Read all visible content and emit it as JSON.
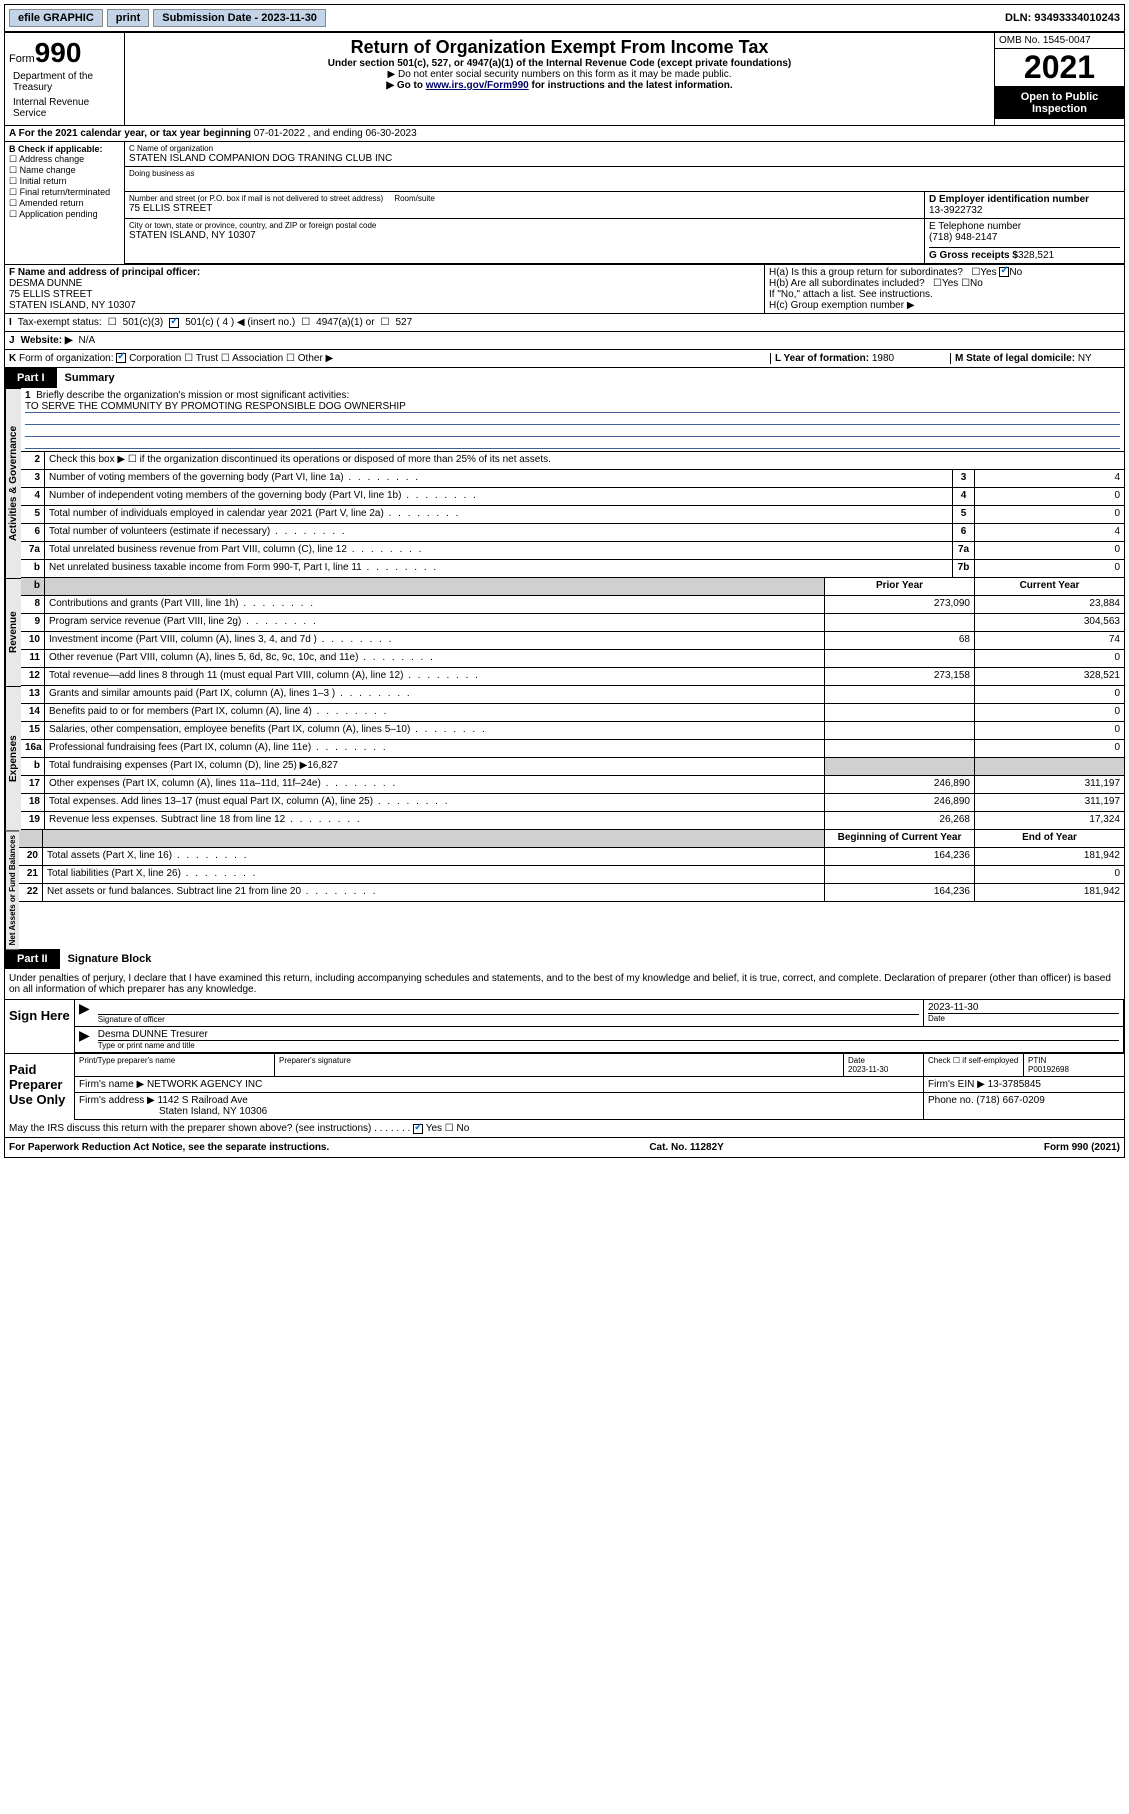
{
  "topbar": {
    "efile": "efile GRAPHIC",
    "print": "print",
    "sub_label": "Submission Date - 2023-11-30",
    "dln": "DLN: 93493334010243"
  },
  "header": {
    "form_word": "Form",
    "form_num": "990",
    "title": "Return of Organization Exempt From Income Tax",
    "subtitle": "Under section 501(c), 527, or 4947(a)(1) of the Internal Revenue Code (except private foundations)",
    "note1": "▶ Do not enter social security numbers on this form as it may be made public.",
    "note2_a": "▶ Go to ",
    "note2_link": "www.irs.gov/Form990",
    "note2_b": " for instructions and the latest information.",
    "omb": "OMB No. 1545-0047",
    "year": "2021",
    "open1": "Open to Public",
    "open2": "Inspection",
    "dept1": "Department of the Treasury",
    "dept2": "Internal Revenue Service"
  },
  "calyear": {
    "a": "A For the 2021 calendar year, or tax year beginning ",
    "begin": "07-01-2022",
    "mid": " , and ending ",
    "end": "06-30-2023"
  },
  "boxB": {
    "label": "B Check if applicable:",
    "opts": [
      "Address change",
      "Name change",
      "Initial return",
      "Final return/terminated",
      "Amended return",
      "Application pending"
    ]
  },
  "boxC": {
    "name_label": "C Name of organization",
    "name": "STATEN ISLAND COMPANION DOG TRANING CLUB INC",
    "dba_label": "Doing business as",
    "addr_label": "Number and street (or P.O. box if mail is not delivered to street address)",
    "room_label": "Room/suite",
    "addr": "75 ELLIS STREET",
    "city_label": "City or town, state or province, country, and ZIP or foreign postal code",
    "city": "STATEN ISLAND, NY  10307"
  },
  "boxD": {
    "label": "D Employer identification number",
    "val": "13-3922732"
  },
  "boxE": {
    "label": "E Telephone number",
    "val": "(718) 948-2147"
  },
  "boxG": {
    "label": "G Gross receipts $",
    "val": "328,521"
  },
  "boxF": {
    "label": "F Name and address of principal officer:",
    "name": "DESMA DUNNE",
    "addr1": "75 ELLIS STREET",
    "addr2": "STATEN ISLAND, NY  10307"
  },
  "boxH": {
    "ha": "H(a)  Is this a group return for subordinates?",
    "hb": "H(b)  Are all subordinates included?",
    "hb_note": "If \"No,\" attach a list. See instructions.",
    "hc": "H(c)  Group exemption number ▶",
    "yes": "Yes",
    "no": "No"
  },
  "lineI": {
    "label": "I",
    "text": "Tax-exempt status:",
    "opts": [
      "501(c)(3)",
      "501(c) ( 4 ) ◀ (insert no.)",
      "4947(a)(1) or",
      "527"
    ]
  },
  "lineJ": {
    "label": "J",
    "text": "Website: ▶",
    "val": "N/A"
  },
  "lineK": {
    "label": "K",
    "text": "Form of organization:",
    "opts": [
      "Corporation",
      "Trust",
      "Association",
      "Other ▶"
    ]
  },
  "lineL": {
    "label": "L Year of formation:",
    "val": "1980"
  },
  "lineM": {
    "label": "M State of legal domicile:",
    "val": "NY"
  },
  "part1": {
    "num": "Part I",
    "title": "Summary"
  },
  "summary": {
    "gov_label": "Activities & Governance",
    "rev_label": "Revenue",
    "exp_label": "Expenses",
    "net_label": "Net Assets or Fund Balances",
    "line1": "Briefly describe the organization's mission or most significant activities:",
    "mission": "TO SERVE THE COMMUNITY BY PROMOTING RESPONSIBLE DOG OWNERSHIP",
    "line2": "Check this box ▶ ☐  if the organization discontinued its operations or disposed of more than 25% of its net assets.",
    "rows_gov": [
      {
        "n": "3",
        "t": "Number of voting members of the governing body (Part VI, line 1a)",
        "b": "3",
        "v": "4"
      },
      {
        "n": "4",
        "t": "Number of independent voting members of the governing body (Part VI, line 1b)",
        "b": "4",
        "v": "0"
      },
      {
        "n": "5",
        "t": "Total number of individuals employed in calendar year 2021 (Part V, line 2a)",
        "b": "5",
        "v": "0"
      },
      {
        "n": "6",
        "t": "Total number of volunteers (estimate if necessary)",
        "b": "6",
        "v": "4"
      },
      {
        "n": "7a",
        "t": "Total unrelated business revenue from Part VIII, column (C), line 12",
        "b": "7a",
        "v": "0"
      },
      {
        "n": "b",
        "t": "Net unrelated business taxable income from Form 990-T, Part I, line 11",
        "b": "7b",
        "v": "0"
      }
    ],
    "prior_hdr": "Prior Year",
    "curr_hdr": "Current Year",
    "rows_rev": [
      {
        "n": "8",
        "t": "Contributions and grants (Part VIII, line 1h)",
        "p": "273,090",
        "c": "23,884"
      },
      {
        "n": "9",
        "t": "Program service revenue (Part VIII, line 2g)",
        "p": "",
        "c": "304,563"
      },
      {
        "n": "10",
        "t": "Investment income (Part VIII, column (A), lines 3, 4, and 7d )",
        "p": "68",
        "c": "74"
      },
      {
        "n": "11",
        "t": "Other revenue (Part VIII, column (A), lines 5, 6d, 8c, 9c, 10c, and 11e)",
        "p": "",
        "c": "0"
      },
      {
        "n": "12",
        "t": "Total revenue—add lines 8 through 11 (must equal Part VIII, column (A), line 12)",
        "p": "273,158",
        "c": "328,521"
      }
    ],
    "rows_exp": [
      {
        "n": "13",
        "t": "Grants and similar amounts paid (Part IX, column (A), lines 1–3 )",
        "p": "",
        "c": "0"
      },
      {
        "n": "14",
        "t": "Benefits paid to or for members (Part IX, column (A), line 4)",
        "p": "",
        "c": "0"
      },
      {
        "n": "15",
        "t": "Salaries, other compensation, employee benefits (Part IX, column (A), lines 5–10)",
        "p": "",
        "c": "0"
      },
      {
        "n": "16a",
        "t": "Professional fundraising fees (Part IX, column (A), line 11e)",
        "p": "",
        "c": "0"
      }
    ],
    "line16b": "Total fundraising expenses (Part IX, column (D), line 25) ▶16,827",
    "rows_exp2": [
      {
        "n": "17",
        "t": "Other expenses (Part IX, column (A), lines 11a–11d, 11f–24e)",
        "p": "246,890",
        "c": "311,197"
      },
      {
        "n": "18",
        "t": "Total expenses. Add lines 13–17 (must equal Part IX, column (A), line 25)",
        "p": "246,890",
        "c": "311,197"
      },
      {
        "n": "19",
        "t": "Revenue less expenses. Subtract line 18 from line 12",
        "p": "26,268",
        "c": "17,324"
      }
    ],
    "beg_hdr": "Beginning of Current Year",
    "end_hdr": "End of Year",
    "rows_net": [
      {
        "n": "20",
        "t": "Total assets (Part X, line 16)",
        "p": "164,236",
        "c": "181,942"
      },
      {
        "n": "21",
        "t": "Total liabilities (Part X, line 26)",
        "p": "",
        "c": "0"
      },
      {
        "n": "22",
        "t": "Net assets or fund balances. Subtract line 21 from line 20",
        "p": "164,236",
        "c": "181,942"
      }
    ]
  },
  "part2": {
    "num": "Part II",
    "title": "Signature Block"
  },
  "sig": {
    "decl": "Under penalties of perjury, I declare that I have examined this return, including accompanying schedules and statements, and to the best of my knowledge and belief, it is true, correct, and complete. Declaration of preparer (other than officer) is based on all information of which preparer has any knowledge.",
    "sign_here": "Sign Here",
    "sig_officer": "Signature of officer",
    "date_label": "Date",
    "date": "2023-11-30",
    "officer_name": "Desma DUNNE  Tresurer",
    "type_name": "Type or print name and title",
    "paid": "Paid Preparer Use Only",
    "prep_name_label": "Print/Type preparer's name",
    "prep_sig_label": "Preparer's signature",
    "prep_date_label": "Date",
    "prep_date": "2023-11-30",
    "self_emp": "Check ☐ if self-employed",
    "ptin_label": "PTIN",
    "ptin": "P00192698",
    "firm_name_label": "Firm's name    ▶",
    "firm_name": "NETWORK AGENCY INC",
    "firm_ein_label": "Firm's EIN ▶",
    "firm_ein": "13-3785845",
    "firm_addr_label": "Firm's address ▶",
    "firm_addr1": "1142 S Railroad Ave",
    "firm_addr2": "Staten Island, NY  10306",
    "firm_phone_label": "Phone no.",
    "firm_phone": "(718) 667-0209",
    "discuss": "May the IRS discuss this return with the preparer shown above? (see instructions)"
  },
  "footer": {
    "left": "For Paperwork Reduction Act Notice, see the separate instructions.",
    "mid": "Cat. No. 11282Y",
    "right": "Form 990 (2021)"
  }
}
